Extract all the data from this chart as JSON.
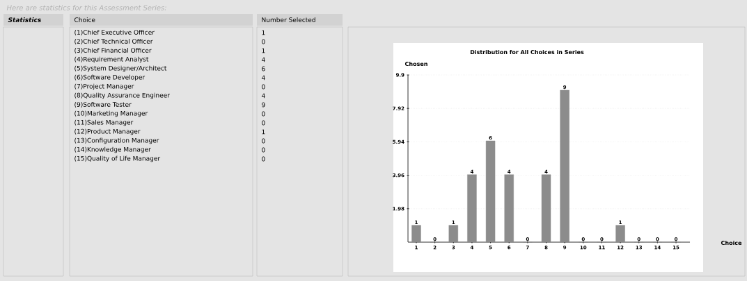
{
  "chart_data": [
    {
      "type": "other",
      "title": "Here are statistics for this Assessment Series:",
      "annotations": [
        "Statistics",
        "Choice",
        "Number Selected",
        "(1)Chief Executive Officer",
        "(2)Chief Technical Officer",
        "(3)Chief Financial Officer",
        "(4)Requirement Analyst",
        "(5)System Designer/Architect",
        "(6)Software Developer",
        "(7)Project Manager",
        "(8)Quality Assurance Engineer",
        "(9)Software Tester",
        "(10)Marketing Manager",
        "(11)Sales Manager",
        "(12)Product Manager",
        "(13)Configuration Manager",
        "(14)Knowledge Manager",
        "(15)Quality of Life Manager",
        "1",
        "0",
        "1",
        "4",
        "6",
        "4",
        "0",
        "4",
        "9",
        "0",
        "0",
        "1",
        "0",
        "0",
        "0"
      ]
    },
    {
      "type": "bar",
      "title": "Distribution for All Choices in Series",
      "xlabel": "Choice",
      "ylabel": "Chosen",
      "categories": [
        "1",
        "2",
        "3",
        "4",
        "5",
        "6",
        "7",
        "8",
        "9",
        "10",
        "11",
        "12",
        "13",
        "14",
        "15"
      ],
      "values": [
        1,
        0,
        1,
        4,
        6,
        4,
        0,
        4,
        9,
        0,
        0,
        1,
        0,
        0,
        0
      ],
      "color": "#8c8c8c",
      "ylim": [
        0,
        9.9
      ],
      "yticks": [
        1.98,
        3.96,
        5.94,
        7.92,
        9.9
      ],
      "grid": "y",
      "data_labels": true
    }
  ]
}
